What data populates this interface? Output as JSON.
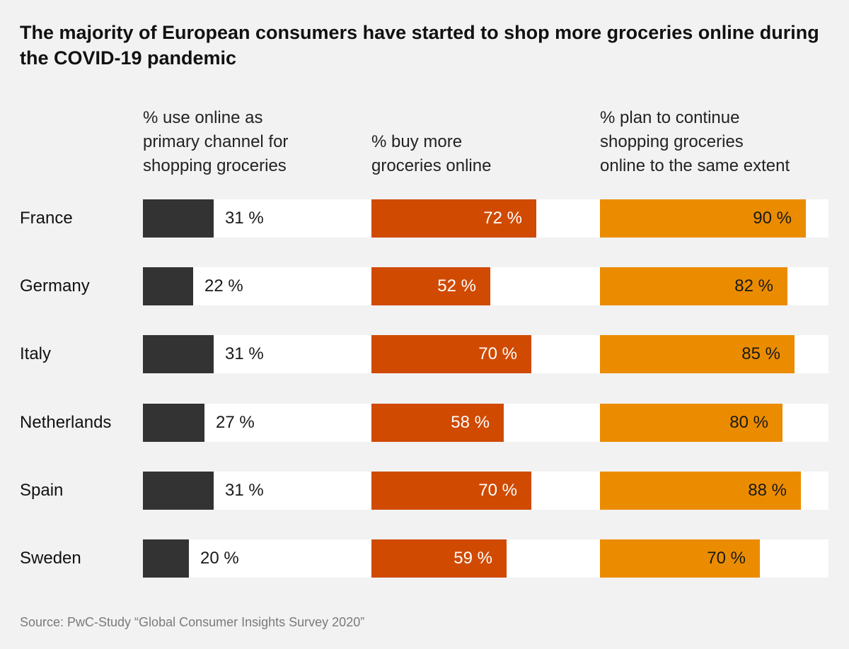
{
  "chart_data": {
    "type": "bar",
    "orientation": "horizontal",
    "title": "The majority of European consumers have started to shop more groceries online during the COVID-19 pandemic",
    "categories": [
      "France",
      "Germany",
      "Italy",
      "Netherlands",
      "Spain",
      "Sweden"
    ],
    "unit": "%",
    "value_format": "{v} %",
    "xlim": [
      0,
      100
    ],
    "series": [
      {
        "name": "% use online as\nprimary channel for\nshopping groceries",
        "color": "#333333",
        "values": [
          31,
          22,
          31,
          27,
          31,
          20
        ],
        "label_position": "outside"
      },
      {
        "name": "% buy more\ngroceries online",
        "color": "#d04a02",
        "values": [
          72,
          52,
          70,
          58,
          70,
          59
        ],
        "label_position": "inside"
      },
      {
        "name": "% plan to continue\nshopping groceries\nonline to the same extent",
        "color": "#eb8c00",
        "values": [
          90,
          82,
          85,
          80,
          88,
          70
        ],
        "label_position": "inside-dark"
      }
    ],
    "source": "Source: PwC-Study “Global Consumer Insights Survey 2020”"
  }
}
